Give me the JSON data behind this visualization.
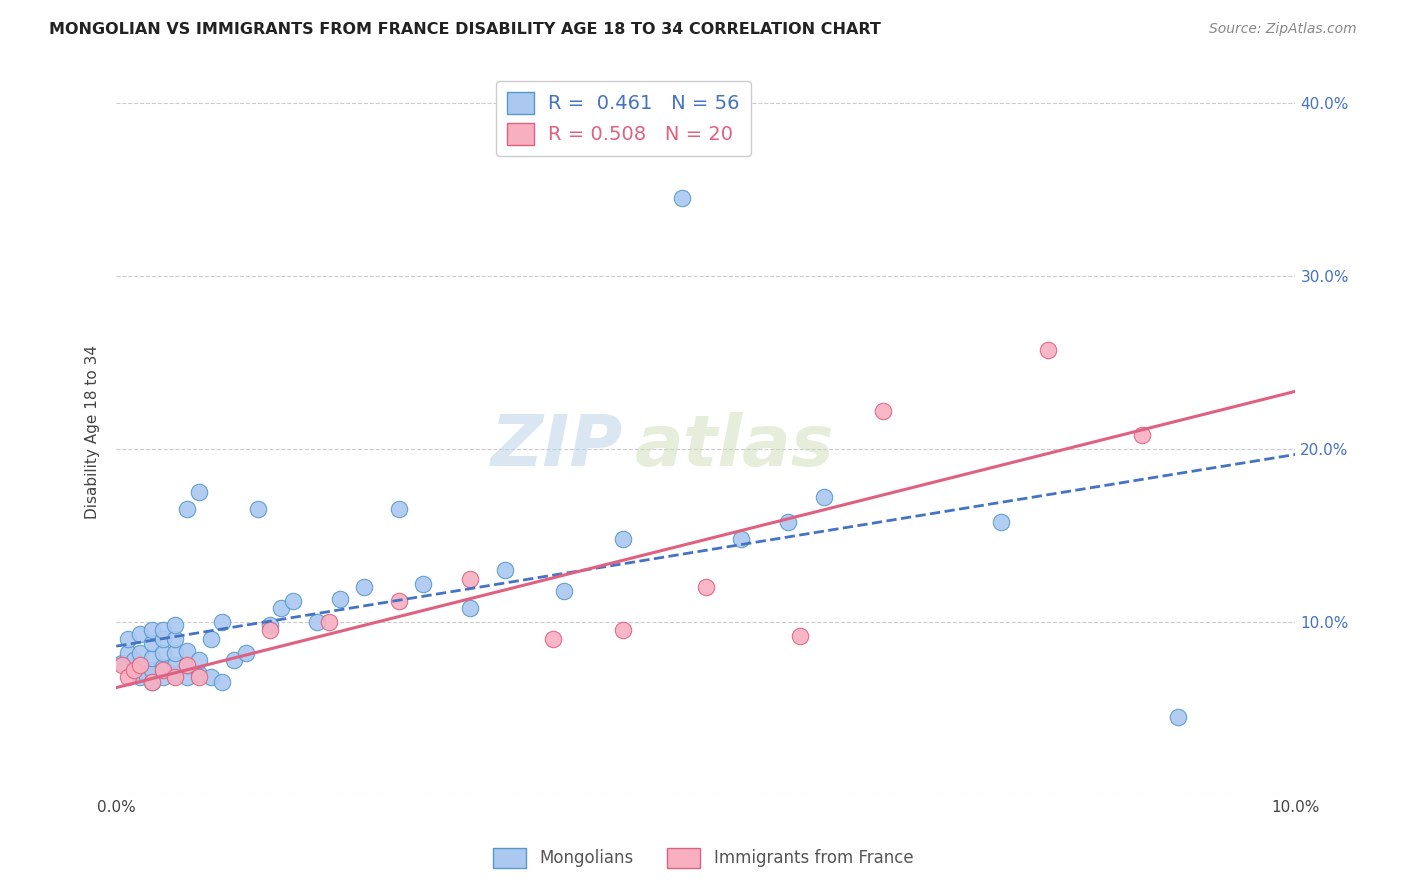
{
  "title": "MONGOLIAN VS IMMIGRANTS FROM FRANCE DISABILITY AGE 18 TO 34 CORRELATION CHART",
  "source": "Source: ZipAtlas.com",
  "ylabel": "Disability Age 18 to 34",
  "xlim": [
    0.0,
    0.1
  ],
  "ylim": [
    0.0,
    0.42
  ],
  "xticks": [
    0.0,
    0.02,
    0.04,
    0.06,
    0.08,
    0.1
  ],
  "xtick_labels": [
    "0.0%",
    "",
    "",
    "",
    "",
    "10.0%"
  ],
  "yticks": [
    0.0,
    0.1,
    0.2,
    0.3,
    0.4
  ],
  "ytick_labels_right": [
    "",
    "10.0%",
    "20.0%",
    "30.0%",
    "40.0%"
  ],
  "mongolian_color": "#aac8f0",
  "mongolian_edge": "#5599cc",
  "france_color": "#f8b0c0",
  "france_edge": "#e06080",
  "trend_mongolian_color": "#4472c4",
  "trend_france_color": "#e06080",
  "watermark_zip": "ZIP",
  "watermark_atlas": "atlas",
  "background_color": "#ffffff",
  "grid_color": "#cccccc",
  "mongolian_x": [
    0.0005,
    0.001,
    0.001,
    0.0015,
    0.002,
    0.002,
    0.002,
    0.002,
    0.0025,
    0.003,
    0.003,
    0.003,
    0.003,
    0.003,
    0.004,
    0.004,
    0.004,
    0.004,
    0.004,
    0.005,
    0.005,
    0.005,
    0.005,
    0.005,
    0.006,
    0.006,
    0.006,
    0.006,
    0.007,
    0.007,
    0.007,
    0.008,
    0.008,
    0.009,
    0.009,
    0.01,
    0.011,
    0.012,
    0.013,
    0.014,
    0.015,
    0.017,
    0.019,
    0.021,
    0.024,
    0.026,
    0.03,
    0.033,
    0.038,
    0.043,
    0.048,
    0.053,
    0.057,
    0.06,
    0.075,
    0.09
  ],
  "mongolian_y": [
    0.076,
    0.082,
    0.09,
    0.078,
    0.068,
    0.075,
    0.082,
    0.093,
    0.07,
    0.065,
    0.072,
    0.079,
    0.088,
    0.095,
    0.068,
    0.074,
    0.082,
    0.09,
    0.095,
    0.07,
    0.075,
    0.082,
    0.09,
    0.098,
    0.068,
    0.075,
    0.083,
    0.165,
    0.07,
    0.078,
    0.175,
    0.068,
    0.09,
    0.065,
    0.1,
    0.078,
    0.082,
    0.165,
    0.098,
    0.108,
    0.112,
    0.1,
    0.113,
    0.12,
    0.165,
    0.122,
    0.108,
    0.13,
    0.118,
    0.148,
    0.345,
    0.148,
    0.158,
    0.172,
    0.158,
    0.045
  ],
  "france_x": [
    0.0005,
    0.001,
    0.0015,
    0.002,
    0.003,
    0.004,
    0.005,
    0.006,
    0.007,
    0.013,
    0.018,
    0.024,
    0.03,
    0.037,
    0.043,
    0.05,
    0.058,
    0.065,
    0.079,
    0.087
  ],
  "france_y": [
    0.075,
    0.068,
    0.072,
    0.075,
    0.065,
    0.072,
    0.068,
    0.075,
    0.068,
    0.095,
    0.1,
    0.112,
    0.125,
    0.09,
    0.095,
    0.12,
    0.092,
    0.222,
    0.257,
    0.208
  ]
}
